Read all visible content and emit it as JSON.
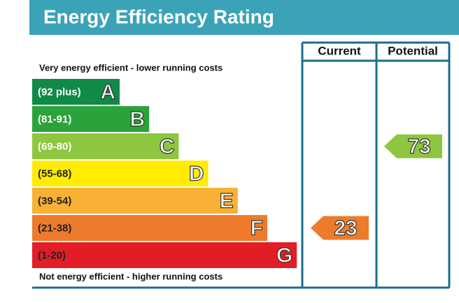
{
  "header": {
    "title": "Energy Efficiency Rating"
  },
  "columns": {
    "current": "Current",
    "potential": "Potential"
  },
  "top_note": "Very energy efficient - lower running costs",
  "bottom_note": "Not energy efficient - higher running costs",
  "bands": [
    {
      "range": "(92 plus)",
      "letter": "A",
      "color": "#0f8a47"
    },
    {
      "range": "(81-91)",
      "letter": "B",
      "color": "#2aa33a"
    },
    {
      "range": "(69-80)",
      "letter": "C",
      "color": "#8dc63f"
    },
    {
      "range": "(55-68)",
      "letter": "D",
      "color": "#ffec00"
    },
    {
      "range": "(39-54)",
      "letter": "E",
      "color": "#f8b133"
    },
    {
      "range": "(21-38)",
      "letter": "F",
      "color": "#ee7b2b"
    },
    {
      "range": "(1-20)",
      "letter": "G",
      "color": "#e31d25"
    }
  ],
  "ratings": {
    "current": 23,
    "potential": 73
  }
}
